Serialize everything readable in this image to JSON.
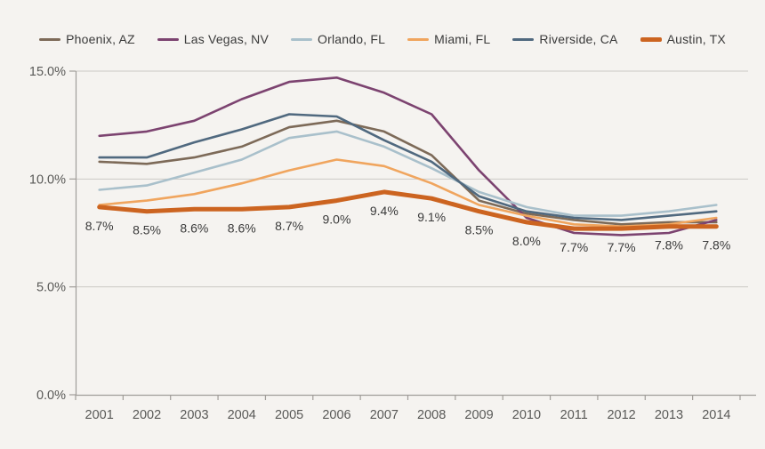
{
  "chart_data": {
    "type": "line",
    "title": "",
    "xlabel": "",
    "ylabel": "",
    "legend_position": "top",
    "grid": "horizontal",
    "categories": [
      "2001",
      "2002",
      "2003",
      "2004",
      "2005",
      "2006",
      "2007",
      "2008",
      "2009",
      "2010",
      "2011",
      "2012",
      "2013",
      "2014"
    ],
    "y_axis": {
      "range": [
        0,
        15
      ],
      "ticks": [
        {
          "label": "15.0%",
          "value": 15
        },
        {
          "label": "10.0%",
          "value": 10
        },
        {
          "label": "5.0%",
          "value": 5
        },
        {
          "label": "0.0%",
          "value": 0
        }
      ]
    },
    "series": [
      {
        "name": "Phoenix, AZ",
        "color": "#7D6A58",
        "stroke_width": 2.6,
        "values": [
          10.8,
          10.7,
          11.0,
          11.5,
          12.4,
          12.7,
          12.2,
          11.1,
          9.0,
          8.4,
          8.1,
          7.9,
          8.0,
          8.0
        ]
      },
      {
        "name": "Las Vegas, NV",
        "color": "#7C4370",
        "stroke_width": 2.6,
        "values": [
          12.0,
          12.2,
          12.7,
          13.7,
          14.5,
          14.7,
          14.0,
          13.0,
          10.4,
          8.2,
          7.5,
          7.4,
          7.5,
          8.1
        ]
      },
      {
        "name": "Orlando, FL",
        "color": "#A9C0CB",
        "stroke_width": 2.6,
        "values": [
          9.5,
          9.7,
          10.3,
          10.9,
          11.9,
          12.2,
          11.5,
          10.5,
          9.4,
          8.7,
          8.3,
          8.3,
          8.5,
          8.8
        ]
      },
      {
        "name": "Miami, FL",
        "color": "#F0A55E",
        "stroke_width": 2.6,
        "values": [
          8.8,
          9.0,
          9.3,
          9.8,
          10.4,
          10.9,
          10.6,
          9.8,
          8.8,
          8.3,
          7.9,
          7.8,
          7.9,
          8.2
        ]
      },
      {
        "name": "Riverside, CA",
        "color": "#50697F",
        "stroke_width": 2.6,
        "values": [
          11.0,
          11.0,
          11.7,
          12.3,
          13.0,
          12.9,
          11.8,
          10.8,
          9.2,
          8.5,
          8.2,
          8.1,
          8.3,
          8.5
        ]
      },
      {
        "name": "Austin, TX",
        "color": "#CC6420",
        "stroke_width": 5,
        "values": [
          8.7,
          8.5,
          8.6,
          8.6,
          8.7,
          9.0,
          9.4,
          9.1,
          8.5,
          8.0,
          7.7,
          7.7,
          7.8,
          7.8
        ],
        "data_labels": [
          "8.7%",
          "8.5%",
          "8.6%",
          "8.6%",
          "8.7%",
          "9.0%",
          "9.4%",
          "9.1%",
          "8.5%",
          "8.0%",
          "7.7%",
          "7.7%",
          "7.8%",
          "7.8%"
        ]
      }
    ]
  },
  "colors": {
    "background": "#F5F3F0",
    "gridline": "#CBC8C4",
    "axis": "#A09D99",
    "tick_text": "#595957",
    "label_text": "#3A3A3A"
  }
}
